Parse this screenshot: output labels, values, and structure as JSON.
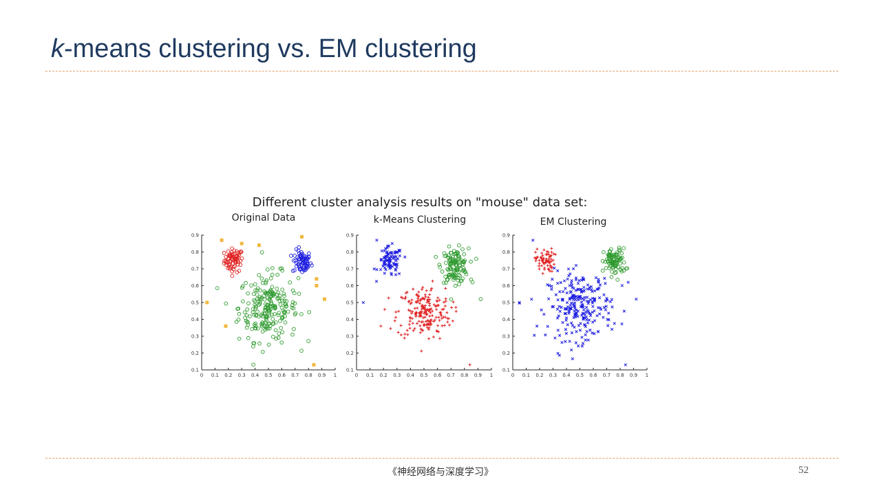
{
  "slide": {
    "title_italic": "k",
    "title_rest": "-means clustering vs. EM clustering",
    "footer_book": "《神经网络与深度学习》",
    "page_number": "52"
  },
  "figure": {
    "title": "Different cluster analysis results on \"mouse\" data set:"
  },
  "colors": {
    "title": "#1f3a5f",
    "rule": "#e3a16a",
    "red": "#e02020",
    "blue": "#1a1ae0",
    "green": "#2e9a2e",
    "orange": "#f0b840"
  },
  "chart_data": [
    {
      "type": "scatter",
      "title": "Original Data",
      "xlim": [
        0,
        1
      ],
      "ylim": [
        0.1,
        0.9
      ],
      "xticks": [
        "0",
        "0.1",
        "0.2",
        "0.3",
        "0.4",
        "0.5",
        "0.6",
        "0.7",
        "0.8",
        "0.9",
        "1"
      ],
      "yticks": [
        "0.1",
        "0.2",
        "0.3",
        "0.4",
        "0.5",
        "0.6",
        "0.7",
        "0.8",
        "0.9"
      ],
      "grid": false,
      "series": [
        {
          "color": "red",
          "marker": "circle",
          "cluster": {
            "cx": 0.24,
            "cy": 0.75,
            "sx": 0.035,
            "sy": 0.035,
            "n": 70
          }
        },
        {
          "color": "blue",
          "marker": "circle",
          "cluster": {
            "cx": 0.75,
            "cy": 0.74,
            "sx": 0.035,
            "sy": 0.035,
            "n": 70
          }
        },
        {
          "color": "green",
          "marker": "circle",
          "cluster": {
            "cx": 0.5,
            "cy": 0.47,
            "sx": 0.11,
            "sy": 0.1,
            "n": 230
          }
        },
        {
          "color": "orange",
          "marker": "square",
          "points": [
            [
              0.15,
              0.87
            ],
            [
              0.3,
              0.85
            ],
            [
              0.43,
              0.84
            ],
            [
              0.75,
              0.89
            ],
            [
              0.86,
              0.64
            ],
            [
              0.86,
              0.6
            ],
            [
              0.04,
              0.5
            ],
            [
              0.92,
              0.52
            ],
            [
              0.18,
              0.36
            ],
            [
              0.84,
              0.13
            ]
          ]
        }
      ]
    },
    {
      "type": "scatter",
      "title": "k-Means Clustering",
      "xlim": [
        0,
        1
      ],
      "ylim": [
        0.1,
        0.9
      ],
      "xticks": [
        "0",
        "0.1",
        "0.2",
        "0.3",
        "0.4",
        "0.5",
        "0.6",
        "0.7",
        "0.8",
        "0.9",
        "1"
      ],
      "yticks": [
        "0.1",
        "0.2",
        "0.3",
        "0.4",
        "0.5",
        "0.6",
        "0.7",
        "0.8",
        "0.9"
      ],
      "grid": false,
      "series": [
        {
          "color": "blue",
          "marker": "cross",
          "cluster": {
            "cx": 0.25,
            "cy": 0.74,
            "sx": 0.045,
            "sy": 0.045,
            "n": 90
          }
        },
        {
          "color": "green",
          "marker": "circle",
          "cluster": {
            "cx": 0.73,
            "cy": 0.72,
            "sx": 0.05,
            "sy": 0.05,
            "n": 120
          }
        },
        {
          "color": "red",
          "marker": "plus",
          "cluster": {
            "cx": 0.5,
            "cy": 0.44,
            "sx": 0.1,
            "sy": 0.08,
            "n": 200
          }
        },
        {
          "color": "blue",
          "marker": "cross",
          "points": [
            [
              0.05,
              0.5
            ],
            [
              0.15,
              0.87
            ]
          ]
        },
        {
          "color": "green",
          "marker": "circle",
          "points": [
            [
              0.92,
              0.52
            ],
            [
              0.86,
              0.62
            ]
          ]
        },
        {
          "color": "red",
          "marker": "plus",
          "points": [
            [
              0.18,
              0.36
            ],
            [
              0.84,
              0.13
            ]
          ]
        }
      ]
    },
    {
      "type": "scatter",
      "title": "EM Clustering",
      "xlim": [
        0,
        1
      ],
      "ylim": [
        0.1,
        0.9
      ],
      "xticks": [
        "0",
        "0.1",
        "0.2",
        "0.3",
        "0.4",
        "0.5",
        "0.6",
        "0.7",
        "0.8",
        "0.9",
        "1"
      ],
      "yticks": [
        "0.1",
        "0.2",
        "0.3",
        "0.4",
        "0.5",
        "0.6",
        "0.7",
        "0.8",
        "0.9"
      ],
      "grid": false,
      "series": [
        {
          "color": "red",
          "marker": "plus",
          "cluster": {
            "cx": 0.24,
            "cy": 0.75,
            "sx": 0.035,
            "sy": 0.035,
            "n": 70
          }
        },
        {
          "color": "green",
          "marker": "circle",
          "cluster": {
            "cx": 0.76,
            "cy": 0.74,
            "sx": 0.04,
            "sy": 0.04,
            "n": 90
          }
        },
        {
          "color": "blue",
          "marker": "cross",
          "cluster": {
            "cx": 0.5,
            "cy": 0.48,
            "sx": 0.12,
            "sy": 0.1,
            "n": 250
          }
        },
        {
          "color": "blue",
          "marker": "cross",
          "points": [
            [
              0.05,
              0.5
            ],
            [
              0.15,
              0.87
            ],
            [
              0.92,
              0.52
            ],
            [
              0.18,
              0.36
            ],
            [
              0.84,
              0.13
            ],
            [
              0.86,
              0.62
            ]
          ]
        }
      ]
    }
  ]
}
